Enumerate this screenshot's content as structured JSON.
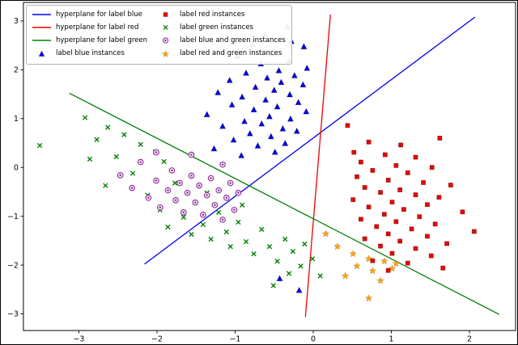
{
  "chart_data": {
    "type": "scatter",
    "title": "",
    "xlabel": "",
    "ylabel": "",
    "grid": false,
    "legend_position": "upper left",
    "legend_columns": 2,
    "xlim": [
      -3.71,
      2.59
    ],
    "ylim": [
      -3.34,
      3.38
    ],
    "xticks": [
      -3,
      -2,
      -1,
      0,
      1,
      2
    ],
    "xtick_labels": [
      "−3",
      "−2",
      "−1",
      "0",
      "1",
      "2"
    ],
    "yticks": [
      -3,
      -2,
      -1,
      0,
      1,
      2,
      3
    ],
    "ytick_labels": [
      "−3",
      "−2",
      "−1",
      "0",
      "1",
      "2",
      "3"
    ],
    "colors": {
      "blue": "#0000ee",
      "red": "#ee0000",
      "green": "#008000",
      "purple": "#8b2f97",
      "orange": "#ffa510",
      "axes": "#000000"
    },
    "lines": [
      {
        "id": "hyperplane-blue",
        "name": "hyperplane for label blue",
        "color": "#0000ee",
        "points": [
          [
            -2.16,
            -1.98
          ],
          [
            2.07,
            3.08
          ]
        ]
      },
      {
        "id": "hyperplane-red",
        "name": "hyperplane for label red",
        "color": "#ee0000",
        "points": [
          [
            -0.1,
            -3.06
          ],
          [
            0.22,
            3.13
          ]
        ]
      },
      {
        "id": "hyperplane-green",
        "name": "hyperplane for label green",
        "color": "#008000",
        "points": [
          [
            -3.12,
            1.52
          ],
          [
            2.38,
            -3.01
          ]
        ]
      }
    ],
    "series": [
      {
        "id": "blue-instances",
        "name": "label blue instances",
        "marker": "triangle",
        "color": "#0000ee",
        "points": [
          [
            -0.33,
            2.88
          ],
          [
            -0.62,
            2.72
          ],
          [
            -0.28,
            2.58
          ],
          [
            -0.78,
            2.52
          ],
          [
            -0.12,
            2.47
          ],
          [
            -0.52,
            2.33
          ],
          [
            -0.97,
            2.27
          ],
          [
            -0.31,
            2.18
          ],
          [
            -0.67,
            2.12
          ],
          [
            -0.08,
            2.03
          ],
          [
            -0.44,
            1.98
          ],
          [
            -0.86,
            1.93
          ],
          [
            -0.24,
            1.88
          ],
          [
            -0.59,
            1.83
          ],
          [
            -1.07,
            1.78
          ],
          [
            -0.41,
            1.74
          ],
          [
            -0.13,
            1.69
          ],
          [
            -0.74,
            1.64
          ],
          [
            -0.5,
            1.58
          ],
          [
            -1.22,
            1.53
          ],
          [
            -0.3,
            1.49
          ],
          [
            -0.91,
            1.44
          ],
          [
            -0.61,
            1.38
          ],
          [
            -0.19,
            1.33
          ],
          [
            -1.04,
            1.28
          ],
          [
            -0.46,
            1.24
          ],
          [
            -0.76,
            1.18
          ],
          [
            -0.09,
            1.14
          ],
          [
            -1.36,
            1.08
          ],
          [
            -0.56,
            1.04
          ],
          [
            -0.29,
            0.99
          ],
          [
            -0.88,
            0.94
          ],
          [
            -0.66,
            0.89
          ],
          [
            -1.16,
            0.84
          ],
          [
            -0.39,
            0.79
          ],
          [
            -0.21,
            0.74
          ],
          [
            -0.81,
            0.69
          ],
          [
            -0.54,
            0.63
          ],
          [
            -1.02,
            0.56
          ],
          [
            -0.36,
            0.49
          ],
          [
            -0.71,
            0.44
          ],
          [
            -1.27,
            0.38
          ],
          [
            -0.49,
            0.31
          ],
          [
            -0.92,
            0.24
          ],
          [
            -0.43,
            -2.28
          ],
          [
            -0.18,
            -2.52
          ]
        ]
      },
      {
        "id": "red-instances",
        "name": "label red instances",
        "marker": "square",
        "color": "#ee0000",
        "points": [
          [
            0.44,
            0.86
          ],
          [
            1.62,
            0.6
          ],
          [
            0.71,
            0.52
          ],
          [
            1.12,
            0.46
          ],
          [
            0.52,
            0.31
          ],
          [
            0.92,
            0.26
          ],
          [
            1.31,
            0.21
          ],
          [
            0.61,
            0.11
          ],
          [
            1.06,
            0.04
          ],
          [
            1.52,
            0.0
          ],
          [
            0.76,
            -0.06
          ],
          [
            1.21,
            -0.11
          ],
          [
            0.56,
            -0.19
          ],
          [
            0.96,
            -0.26
          ],
          [
            1.41,
            -0.31
          ],
          [
            1.76,
            -0.36
          ],
          [
            0.66,
            -0.41
          ],
          [
            1.11,
            -0.46
          ],
          [
            0.86,
            -0.51
          ],
          [
            1.31,
            -0.56
          ],
          [
            1.61,
            -0.61
          ],
          [
            0.51,
            -0.66
          ],
          [
            1.01,
            -0.71
          ],
          [
            1.46,
            -0.76
          ],
          [
            0.71,
            -0.81
          ],
          [
            1.16,
            -0.86
          ],
          [
            1.91,
            -0.91
          ],
          [
            0.91,
            -0.96
          ],
          [
            1.36,
            -1.01
          ],
          [
            0.61,
            -1.06
          ],
          [
            1.06,
            -1.11
          ],
          [
            1.56,
            -1.16
          ],
          [
            0.81,
            -1.21
          ],
          [
            1.26,
            -1.26
          ],
          [
            2.06,
            -1.31
          ],
          [
            0.96,
            -1.36
          ],
          [
            1.46,
            -1.41
          ],
          [
            0.66,
            -1.46
          ],
          [
            1.11,
            -1.51
          ],
          [
            1.71,
            -1.56
          ],
          [
            0.86,
            -1.61
          ],
          [
            1.31,
            -1.66
          ],
          [
            1.01,
            -1.76
          ],
          [
            1.51,
            -1.81
          ],
          [
            0.76,
            -1.91
          ],
          [
            1.21,
            -1.96
          ],
          [
            0.96,
            -2.11
          ],
          [
            1.66,
            -2.06
          ]
        ]
      },
      {
        "id": "green-instances",
        "name": "label green instances",
        "marker": "x",
        "color": "#008000",
        "points": [
          [
            -3.5,
            0.45
          ],
          [
            -2.92,
            1.02
          ],
          [
            -2.77,
            0.57
          ],
          [
            -2.63,
            0.82
          ],
          [
            -2.52,
            0.22
          ],
          [
            -2.42,
            0.67
          ],
          [
            -2.31,
            -0.12
          ],
          [
            -2.21,
            0.47
          ],
          [
            -2.12,
            -0.57
          ],
          [
            -2.02,
            0.32
          ],
          [
            -1.96,
            -0.87
          ],
          [
            -1.86,
            -1.22
          ],
          [
            -1.77,
            -0.32
          ],
          [
            -1.66,
            -1.02
          ],
          [
            -1.56,
            -1.37
          ],
          [
            -1.51,
            -0.72
          ],
          [
            -1.41,
            -1.17
          ],
          [
            -1.31,
            -1.47
          ],
          [
            -1.21,
            -0.92
          ],
          [
            -1.11,
            -1.32
          ],
          [
            -1.06,
            -1.62
          ],
          [
            -0.96,
            -1.12
          ],
          [
            -0.86,
            -1.52
          ],
          [
            -0.76,
            -1.77
          ],
          [
            -0.66,
            -1.27
          ],
          [
            -0.56,
            -1.62
          ],
          [
            -0.46,
            -1.92
          ],
          [
            -0.36,
            -1.47
          ],
          [
            -0.26,
            -1.72
          ],
          [
            -0.16,
            -2.02
          ],
          [
            -0.11,
            -1.57
          ],
          [
            -0.01,
            -1.87
          ],
          [
            0.09,
            -2.22
          ],
          [
            -0.31,
            -2.17
          ],
          [
            -0.51,
            -2.42
          ],
          [
            -2.66,
            -0.37
          ],
          [
            -2.86,
            0.17
          ],
          [
            -1.91,
            0.12
          ],
          [
            -1.36,
            -0.52
          ],
          [
            -0.91,
            -0.77
          ]
        ]
      },
      {
        "id": "blue-green-instances",
        "name": "label blue and green instances",
        "marker": "circle-dot",
        "color": "#8b2f97",
        "points": [
          [
            -2.47,
            -0.16
          ],
          [
            -2.32,
            -0.42
          ],
          [
            -2.21,
            0.11
          ],
          [
            -2.11,
            -0.62
          ],
          [
            -2.01,
            -0.27
          ],
          [
            -1.96,
            -0.82
          ],
          [
            -1.86,
            -0.47
          ],
          [
            -1.81,
            -0.06
          ],
          [
            -1.76,
            -0.67
          ],
          [
            -1.71,
            -0.32
          ],
          [
            -1.66,
            -0.92
          ],
          [
            -1.61,
            -0.52
          ],
          [
            -1.56,
            -0.17
          ],
          [
            -1.51,
            -0.72
          ],
          [
            -1.46,
            -0.37
          ],
          [
            -1.41,
            -0.97
          ],
          [
            -1.36,
            -0.57
          ],
          [
            -1.31,
            -0.22
          ],
          [
            -1.26,
            -0.77
          ],
          [
            -1.21,
            -0.47
          ],
          [
            -1.16,
            -1.07
          ],
          [
            -1.11,
            -0.62
          ],
          [
            -1.06,
            -0.32
          ],
          [
            -1.01,
            -0.87
          ],
          [
            -0.96,
            -0.52
          ],
          [
            -1.56,
            0.26
          ],
          [
            -2.01,
            0.31
          ],
          [
            -1.16,
            0.06
          ]
        ]
      },
      {
        "id": "red-green-instances",
        "name": "label red and green instances",
        "marker": "star",
        "color": "#ffa510",
        "points": [
          [
            0.16,
            -1.36
          ],
          [
            0.31,
            -1.62
          ],
          [
            0.51,
            -1.77
          ],
          [
            0.71,
            -1.87
          ],
          [
            0.91,
            -1.92
          ],
          [
            0.56,
            -2.02
          ],
          [
            0.76,
            -2.12
          ],
          [
            1.01,
            -2.07
          ],
          [
            0.41,
            -2.22
          ],
          [
            0.86,
            -2.32
          ],
          [
            1.06,
            -1.97
          ],
          [
            0.71,
            -2.68
          ]
        ]
      }
    ]
  }
}
